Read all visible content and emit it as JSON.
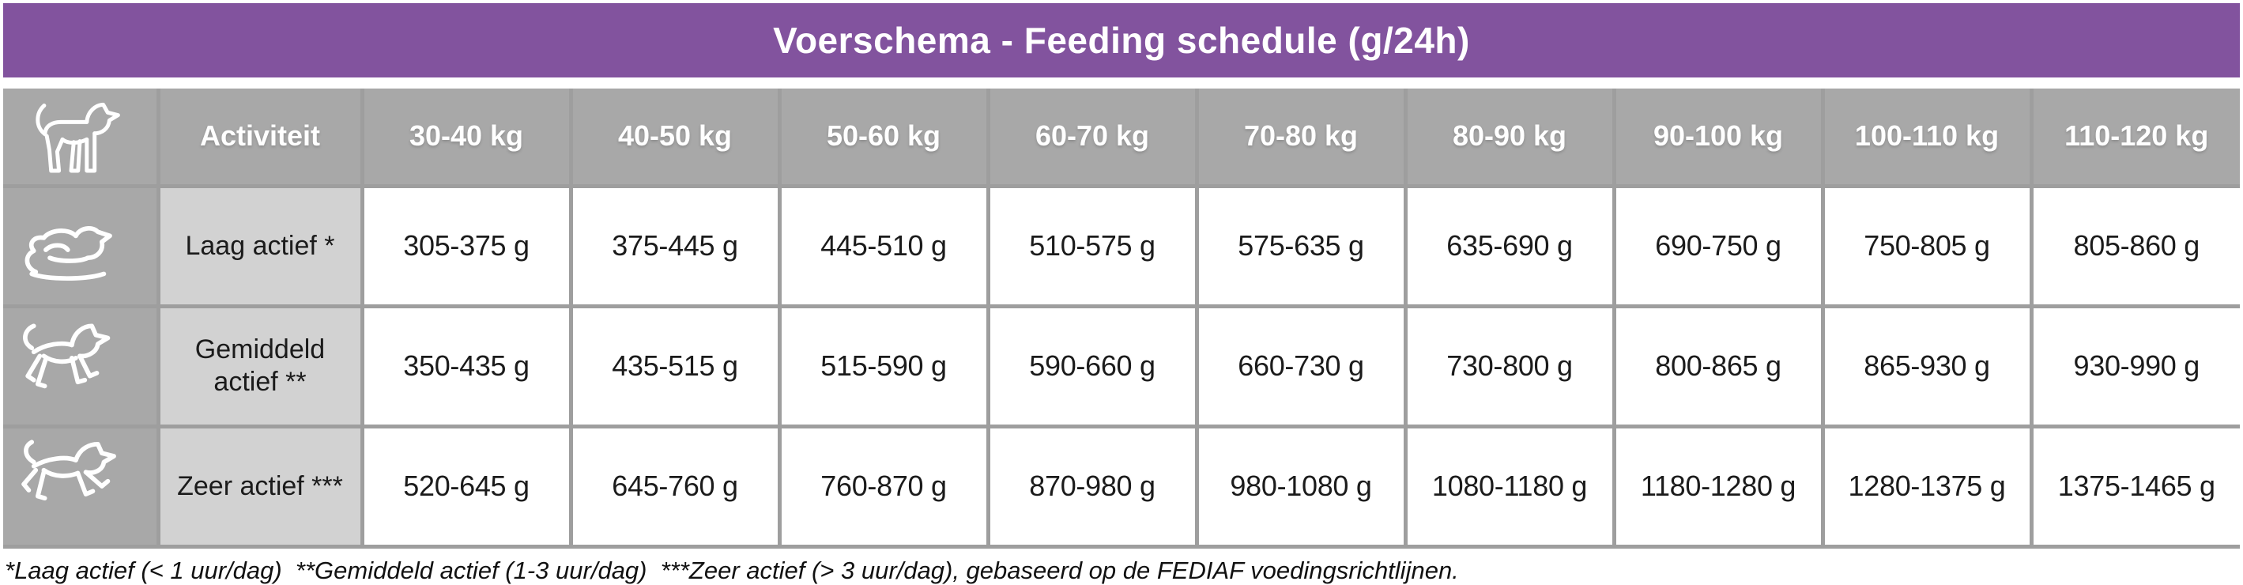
{
  "title_bar": {
    "title": "Voerschema - Feeding schedule (g/24h)"
  },
  "header": {
    "corner_icon": "dog-standing-icon",
    "activity_label": "Activiteit"
  },
  "chart_data": {
    "type": "table",
    "title": "Voerschema - Feeding schedule (g/24h)",
    "unit": "g/24h",
    "weight_categories": [
      "30-40 kg",
      "40-50 kg",
      "50-60 kg",
      "60-70 kg",
      "70-80 kg",
      "80-90 kg",
      "90-100 kg",
      "100-110 kg",
      "110-120 kg"
    ],
    "activity_rows": [
      {
        "icon": "dog-lying-icon",
        "activity": "Laag actief *",
        "grams_per_24h": [
          "305-375 g",
          "375-445 g",
          "445-510 g",
          "510-575 g",
          "575-635 g",
          "635-690 g",
          "690-750 g",
          "750-805 g",
          "805-860 g"
        ]
      },
      {
        "icon": "dog-trotting-icon",
        "activity": "Gemiddeld actief **",
        "grams_per_24h": [
          "350-435 g",
          "435-515 g",
          "515-590 g",
          "590-660 g",
          "660-730 g",
          "730-800 g",
          "800-865 g",
          "865-930 g",
          "930-990 g"
        ]
      },
      {
        "icon": "dog-galloping-icon",
        "activity": "Zeer actief ***",
        "grams_per_24h": [
          "520-645 g",
          "645-760 g",
          "760-870 g",
          "870-980 g",
          "980-1080 g",
          "1080-1180 g",
          "1180-1280 g",
          "1280-1375 g",
          "1375-1465 g"
        ]
      }
    ],
    "footnote": "*Laag actief (< 1 uur/dag)  **Gemiddeld actief (1-3 uur/dag)  ***Zeer actief (> 3 uur/dag), gebaseerd op de FEDIAF voedingsrichtlijnen."
  },
  "colors": {
    "title_purple": "#82539E",
    "header_gray": "#A8A8A8",
    "activity_cell_gray": "#D2D2D2",
    "grid_gray": "#9E9E9E",
    "text_white": "#FFFFFF",
    "text_black": "#1B1B1B"
  }
}
